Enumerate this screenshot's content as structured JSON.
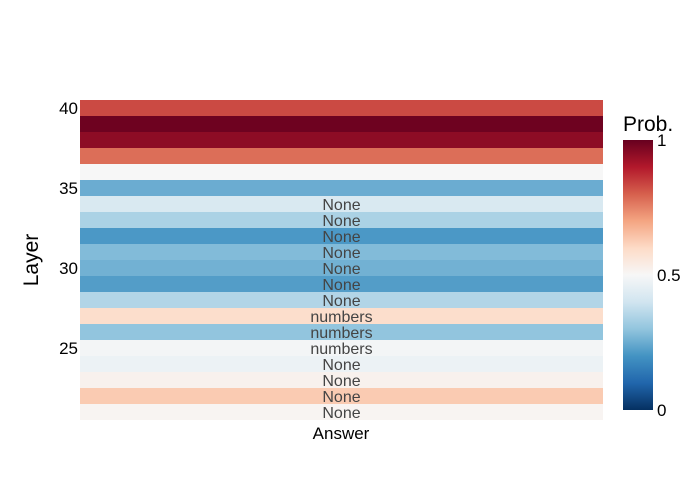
{
  "chart_data": {
    "type": "heatmap",
    "xlabel": "Answer",
    "ylabel": "Layer",
    "y_ticks": [
      "40",
      "35",
      "30",
      "25"
    ],
    "y_range": [
      21,
      40
    ],
    "colorbar": {
      "title": "Prob.",
      "ticks": [
        "1",
        "0.5",
        "0"
      ],
      "range": [
        0,
        1
      ],
      "colorscale": [
        "#053061",
        "#2166ac",
        "#4393c3",
        "#92c5de",
        "#d1e5f0",
        "#f7f7f7",
        "#fddbc7",
        "#f4a582",
        "#d6604d",
        "#b2182b",
        "#67001f"
      ]
    },
    "rows": [
      {
        "layer": 40,
        "value": 0.83,
        "label": ""
      },
      {
        "layer": 39,
        "value": 0.99,
        "label": ""
      },
      {
        "layer": 38,
        "value": 0.95,
        "label": ""
      },
      {
        "layer": 37,
        "value": 0.78,
        "label": ""
      },
      {
        "layer": 36,
        "value": 0.5,
        "label": ""
      },
      {
        "layer": 35,
        "value": 0.25,
        "label": ""
      },
      {
        "layer": 34,
        "value": 0.42,
        "label": "None"
      },
      {
        "layer": 33,
        "value": 0.34,
        "label": "None"
      },
      {
        "layer": 32,
        "value": 0.21,
        "label": "None"
      },
      {
        "layer": 31,
        "value": 0.28,
        "label": "None"
      },
      {
        "layer": 30,
        "value": 0.26,
        "label": "None"
      },
      {
        "layer": 29,
        "value": 0.22,
        "label": "None"
      },
      {
        "layer": 28,
        "value": 0.35,
        "label": "None"
      },
      {
        "layer": 27,
        "value": 0.59,
        "label": "numbers"
      },
      {
        "layer": 26,
        "value": 0.3,
        "label": "numbers"
      },
      {
        "layer": 25,
        "value": 0.49,
        "label": "numbers"
      },
      {
        "layer": 24,
        "value": 0.47,
        "label": "None"
      },
      {
        "layer": 23,
        "value": 0.52,
        "label": "None"
      },
      {
        "layer": 22,
        "value": 0.63,
        "label": "None"
      },
      {
        "layer": 21,
        "value": 0.51,
        "label": "None"
      }
    ]
  }
}
